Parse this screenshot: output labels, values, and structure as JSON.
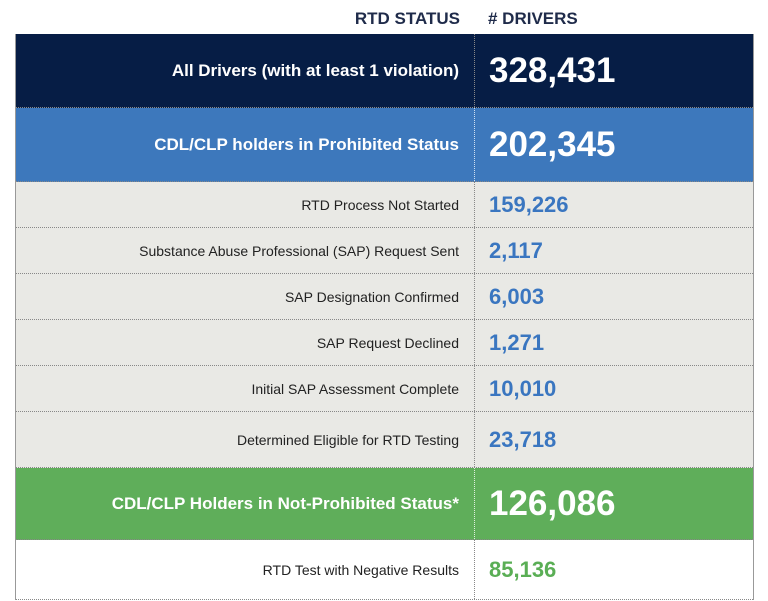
{
  "header": {
    "status_label": "RTD STATUS",
    "drivers_label": "# DRIVERS"
  },
  "colors": {
    "dark": "#061d45",
    "blue": "#3d78bc",
    "gray": "#e9e9e5",
    "green": "#5fae5a",
    "blue_text": "#3a76c0",
    "green_text": "#5aae55"
  },
  "rows": [
    {
      "label": "All Drivers (with at least 1 violation)",
      "value": "328,431"
    },
    {
      "label": "CDL/CLP holders in Prohibited Status",
      "value": "202,345"
    },
    {
      "label": "RTD Process Not Started",
      "value": "159,226"
    },
    {
      "label": "Substance Abuse Professional (SAP) Request Sent",
      "value": "2,117"
    },
    {
      "label": "SAP Designation Confirmed",
      "value": "6,003"
    },
    {
      "label": "SAP Request Declined",
      "value": "1,271"
    },
    {
      "label": "Initial SAP Assessment Complete",
      "value": "10,010"
    },
    {
      "label": "Determined Eligible for RTD Testing",
      "value": "23,718"
    },
    {
      "label": "CDL/CLP Holders in Not-Prohibited Status*",
      "value": "126,086"
    },
    {
      "label": "RTD Test with Negative Results",
      "value": "85,136"
    }
  ]
}
